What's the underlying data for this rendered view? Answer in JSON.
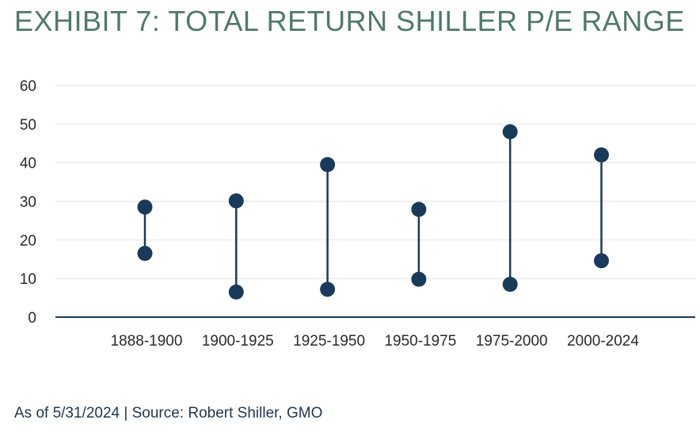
{
  "title": "EXHIBIT 7: TOTAL RETURN SHILLER P/E RANGE",
  "footnote": "As of 5/31/2024 | Source: Robert Shiller, GMO",
  "colors": {
    "title": "#4f7a68",
    "marker": "#1a3a5c",
    "gridline": "#e3e7ea",
    "axis": "#1a3a5c",
    "text": "#2a2a2a"
  },
  "chart_data": {
    "type": "range",
    "categories": [
      "1888-1900",
      "1900-1925",
      "1925-1950",
      "1950-1975",
      "1975-2000",
      "2000-2024"
    ],
    "series": [
      {
        "values": [
          16.5,
          6.5,
          7.2,
          9.8,
          8.5,
          14.6
        ]
      },
      {
        "values": [
          28.5,
          30.1,
          39.5,
          27.9,
          48.0,
          42.0
        ]
      }
    ],
    "yticks": [
      0,
      10,
      20,
      30,
      40,
      50,
      60
    ],
    "ylim": [
      0,
      60
    ],
    "grid": true,
    "legend": "none"
  }
}
